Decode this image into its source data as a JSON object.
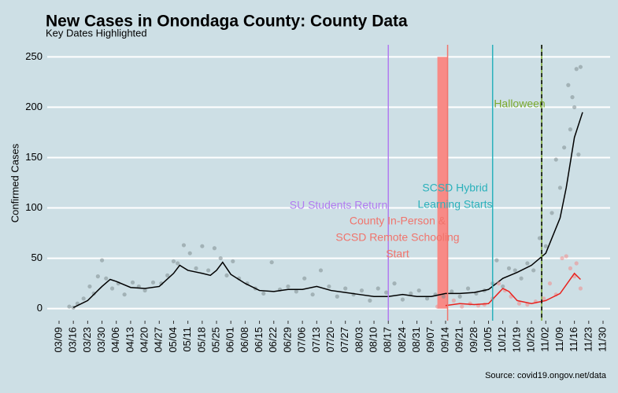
{
  "chart_data": {
    "type": "scatter-line",
    "title": "New Cases in Onondaga County: County Data",
    "subtitle": "Key Dates Highlighted",
    "y_label": "Confirmed Cases",
    "source": "Source: covid19.ongov.net/data",
    "ylim": [
      -12,
      262
    ],
    "yticks": [
      0,
      50,
      100,
      150,
      200,
      250
    ],
    "grid": true,
    "xlim": [
      "03/09",
      "11/30"
    ],
    "xticks": [
      "03/09",
      "03/16",
      "03/23",
      "03/30",
      "04/06",
      "04/13",
      "04/20",
      "04/27",
      "05/04",
      "05/11",
      "05/18",
      "05/25",
      "06/01",
      "06/08",
      "06/15",
      "06/22",
      "06/29",
      "07/06",
      "07/13",
      "07/20",
      "07/27",
      "08/03",
      "08/10",
      "08/17",
      "08/24",
      "08/31",
      "09/07",
      "09/14",
      "09/21",
      "09/28",
      "10/05",
      "10/12",
      "10/19",
      "10/26",
      "11/02",
      "11/09",
      "11/16",
      "11/23",
      "11/30"
    ],
    "highlight_bar": {
      "x": [
        "09/10",
        "09/15"
      ],
      "value": 250,
      "color": "#f88a86"
    },
    "events": [
      {
        "date": "08/17",
        "color": "#b27cf0",
        "dash": false,
        "label": [
          "SU Students Return"
        ]
      },
      {
        "date": "09/15",
        "color": "#f0746c",
        "dash": false,
        "label": [
          "County In-Person &",
          "SCSD Remote Schooling",
          "Start"
        ]
      },
      {
        "date": "10/07",
        "color": "#2bb1bb",
        "dash": false,
        "label": [
          "SCSD Hybrid",
          "Learning Starts"
        ]
      },
      {
        "date": "10/31",
        "color": "#7aa82e",
        "dash": true,
        "label": [
          "Halloween"
        ]
      }
    ],
    "series": [
      {
        "kind": "points",
        "color": "#7f8c8f",
        "x": [
          "03/14",
          "03/16",
          "03/18",
          "03/21",
          "03/24",
          "03/26",
          "03/28",
          "03/30",
          "04/01",
          "04/04",
          "04/07",
          "04/10",
          "04/14",
          "04/17",
          "04/20",
          "04/24",
          "04/28",
          "05/01",
          "05/04",
          "05/06",
          "05/09",
          "05/12",
          "05/15",
          "05/18",
          "05/21",
          "05/24",
          "05/27",
          "05/30",
          "06/02",
          "06/05",
          "06/09",
          "06/13",
          "06/17",
          "06/21",
          "06/25",
          "06/29",
          "07/03",
          "07/07",
          "07/11",
          "07/15",
          "07/19",
          "07/23",
          "07/27",
          "07/31",
          "08/04",
          "08/08",
          "08/12",
          "08/16",
          "08/20",
          "08/24",
          "08/28",
          "09/01",
          "09/05",
          "09/09",
          "09/13",
          "09/17",
          "09/21",
          "09/25",
          "09/29",
          "10/03",
          "10/07",
          "10/09",
          "10/12",
          "10/15",
          "10/18",
          "10/21",
          "10/24",
          "10/27",
          "10/30",
          "11/02",
          "11/05",
          "11/07",
          "11/09",
          "11/11",
          "11/13",
          "11/14",
          "11/15",
          "11/16",
          "11/17",
          "11/18",
          "11/19"
        ],
        "values": [
          2,
          1,
          5,
          10,
          22,
          15,
          32,
          48,
          30,
          20,
          25,
          14,
          26,
          22,
          18,
          26,
          25,
          33,
          47,
          45,
          63,
          55,
          40,
          62,
          38,
          60,
          50,
          33,
          47,
          30,
          25,
          20,
          15,
          46,
          19,
          22,
          17,
          30,
          14,
          38,
          22,
          12,
          20,
          14,
          18,
          8,
          20,
          16,
          25,
          9,
          15,
          18,
          10,
          14,
          12,
          17,
          12,
          20,
          15,
          18,
          25,
          48,
          22,
          40,
          38,
          30,
          45,
          38,
          70,
          62,
          95,
          148,
          120,
          160,
          222,
          178,
          210,
          200,
          238,
          153,
          240
        ]
      },
      {
        "kind": "line",
        "color": "#000000",
        "x": [
          "03/16",
          "03/23",
          "03/30",
          "04/03",
          "04/06",
          "04/13",
          "04/20",
          "04/27",
          "05/04",
          "05/07",
          "05/11",
          "05/18",
          "05/22",
          "05/25",
          "05/28",
          "06/01",
          "06/08",
          "06/15",
          "06/22",
          "06/29",
          "07/06",
          "07/13",
          "07/20",
          "07/27",
          "08/03",
          "08/10",
          "08/17",
          "08/24",
          "08/31",
          "09/07",
          "09/14",
          "09/21",
          "09/28",
          "10/05",
          "10/12",
          "10/19",
          "10/26",
          "11/02",
          "11/09",
          "11/12",
          "11/16",
          "11/20"
        ],
        "values": [
          1,
          8,
          22,
          29,
          27,
          21,
          20,
          22,
          35,
          43,
          38,
          35,
          33,
          38,
          46,
          34,
          25,
          18,
          17,
          19,
          19,
          22,
          18,
          16,
          14,
          12,
          12,
          14,
          12,
          12,
          15,
          15,
          16,
          19,
          30,
          36,
          43,
          55,
          90,
          120,
          170,
          195
        ]
      },
      {
        "kind": "points",
        "color": "#f08a8a",
        "x": [
          "09/10",
          "09/14",
          "09/18",
          "09/22",
          "09/26",
          "09/30",
          "10/03",
          "10/07",
          "10/10",
          "10/13",
          "10/16",
          "10/20",
          "10/24",
          "10/28",
          "11/01",
          "11/04",
          "11/07",
          "11/10",
          "11/12",
          "11/14",
          "11/16",
          "11/17",
          "11/19"
        ],
        "values": [
          2,
          6,
          8,
          2,
          5,
          3,
          4,
          10,
          25,
          18,
          12,
          5,
          4,
          7,
          10,
          25,
          14,
          50,
          52,
          40,
          32,
          45,
          20
        ]
      },
      {
        "kind": "line",
        "color": "#e8221e",
        "x": [
          "09/14",
          "09/21",
          "09/28",
          "10/05",
          "10/12",
          "10/15",
          "10/19",
          "10/26",
          "11/02",
          "11/09",
          "11/16",
          "11/19"
        ],
        "values": [
          3,
          5,
          4,
          5,
          20,
          17,
          8,
          5,
          8,
          15,
          35,
          29
        ]
      }
    ]
  }
}
